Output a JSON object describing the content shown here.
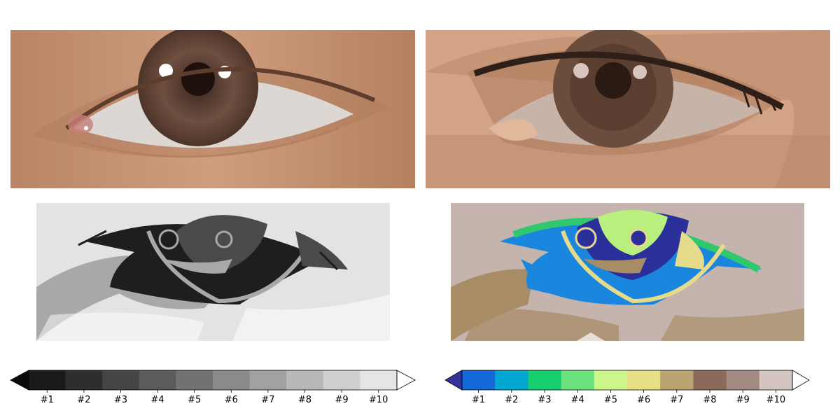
{
  "panels": {
    "photo": {
      "colors": {
        "skin": "#c79573",
        "skin_dark": "#a06b4f",
        "sclera": "#dcd6d2",
        "iris": "#6a4a3a",
        "pupil": "#1f1210",
        "lash": "#3b2a22"
      }
    },
    "quantized": {
      "colors": {
        "skin": "#d7a98a",
        "skin_dark": "#a87658",
        "sclera": "#c8b3a9",
        "iris": "#6b4d3d",
        "pupil": "#2a1a14",
        "lash": "#2e2019"
      }
    },
    "gray": {
      "colors": {
        "bg": "#e3e3e3",
        "mid": "#a8a8a8",
        "dark": "#1e1e1e",
        "iris": "#4a4a4a"
      }
    },
    "terrain": {
      "colors": {
        "bg": "#c5b4ae",
        "sand": "#a88c66",
        "blue": "#1a86dd",
        "navy": "#2b2f9a",
        "green": "#2fc86f",
        "lime": "#b8ef7d",
        "yellow": "#e6db8a"
      }
    }
  },
  "colorbars": [
    {
      "id": "gray",
      "under_color": "#0a0a0a",
      "over_color": "#ffffff",
      "colors": [
        "#1a1a1a",
        "#2e2e2e",
        "#454545",
        "#5b5b5b",
        "#727272",
        "#8a8a8a",
        "#a1a1a1",
        "#b8b8b8",
        "#cfcfcf",
        "#e5e5e5"
      ],
      "labels": [
        "#1",
        "#2",
        "#3",
        "#4",
        "#5",
        "#6",
        "#7",
        "#8",
        "#9",
        "#10"
      ]
    },
    {
      "id": "terrain",
      "under_color": "#333399",
      "over_color": "#ffffff",
      "colors": [
        "#1568d8",
        "#02a6d3",
        "#16cf6e",
        "#6ce27e",
        "#ccf68a",
        "#e5df87",
        "#b9a472",
        "#8b6a59",
        "#a38b83",
        "#d3c5bf"
      ],
      "labels": [
        "#1",
        "#2",
        "#3",
        "#4",
        "#5",
        "#6",
        "#7",
        "#8",
        "#9",
        "#10"
      ]
    }
  ]
}
